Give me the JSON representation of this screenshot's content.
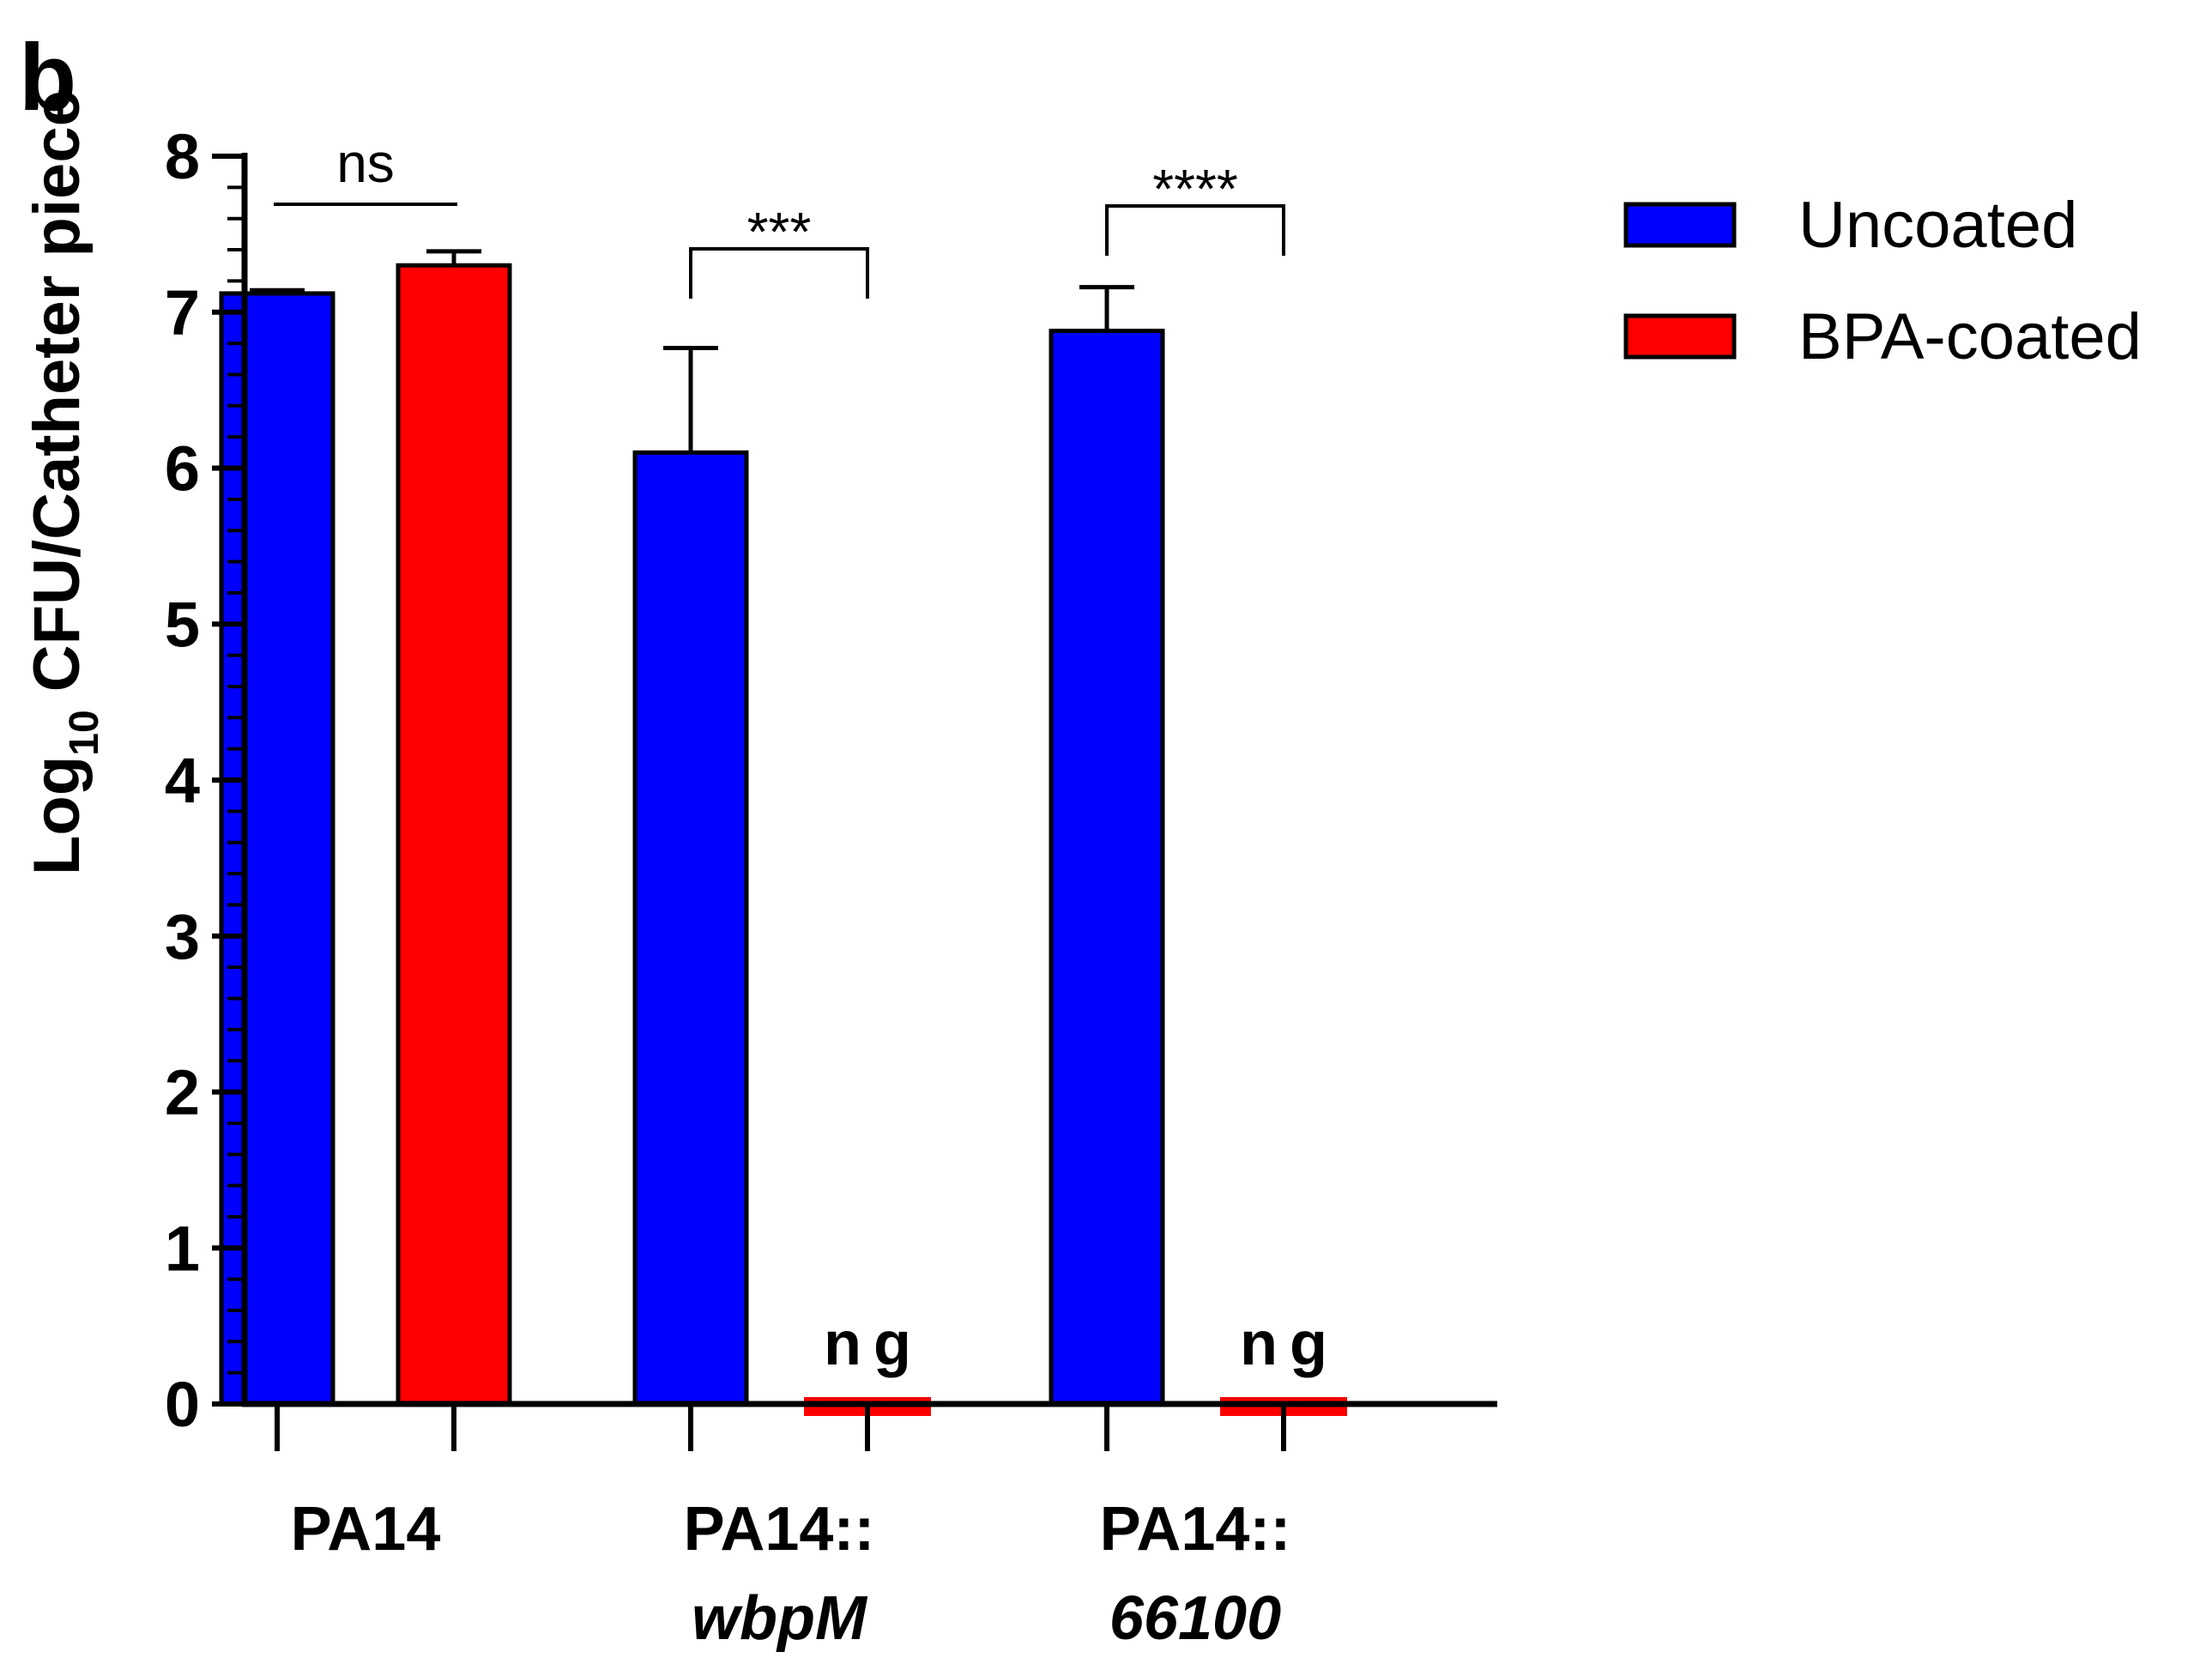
{
  "panel_label": "b",
  "chart_data": {
    "type": "bar",
    "ylabel": {
      "base": "Log",
      "subscript": "10",
      "rest": " CFU/Catheter piece"
    },
    "ylim": [
      0,
      8
    ],
    "yticks": [
      "0",
      "1",
      "2",
      "3",
      "4",
      "5",
      "6",
      "7",
      "8"
    ],
    "minor_ticks_per_major": 5,
    "categories": [
      {
        "line1": "PA14",
        "line2": ""
      },
      {
        "line1": "PA14::",
        "line2": "wbpM"
      },
      {
        "line1": "PA14::",
        "line2": "66100"
      }
    ],
    "series": [
      {
        "name": "Uncoated",
        "color": "#0000ff",
        "values": [
          7.12,
          6.1,
          6.88
        ],
        "errors": [
          0.02,
          0.67,
          0.28
        ]
      },
      {
        "name": "BPA-coated",
        "color": "#ff0000",
        "values": [
          7.3,
          0,
          0
        ],
        "errors": [
          0.09,
          0,
          0
        ]
      }
    ],
    "not_grown": [
      {
        "category_index": 1,
        "series_index": 1,
        "label": "ng"
      },
      {
        "category_index": 2,
        "series_index": 1,
        "label": "ng"
      }
    ],
    "significance": [
      {
        "category_index": 0,
        "label": "ns",
        "style": "line"
      },
      {
        "category_index": 1,
        "label": "***",
        "style": "bracket"
      },
      {
        "category_index": 2,
        "label": "****",
        "style": "bracket"
      }
    ],
    "legend_position": "top-right",
    "grid": false
  }
}
